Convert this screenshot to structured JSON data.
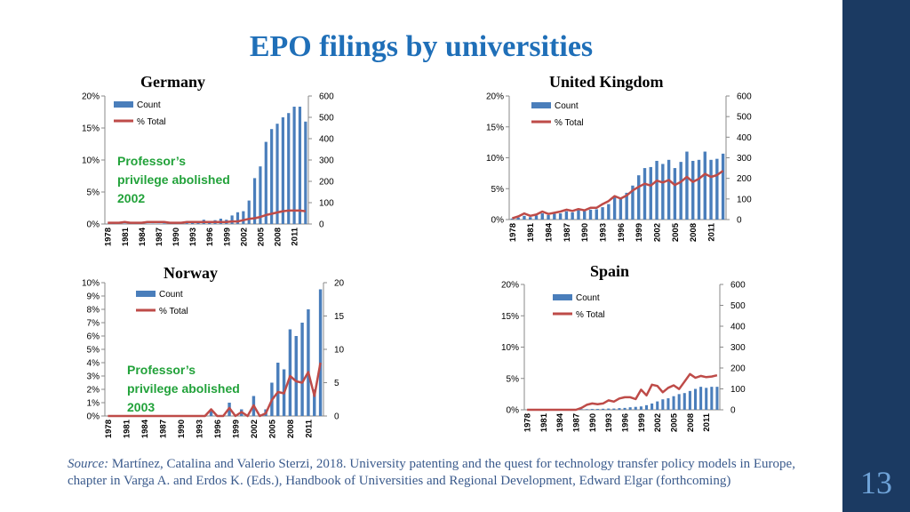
{
  "slide": {
    "title": "EPO filings by universities",
    "page_number": "13",
    "source_label": "Source:",
    "source_text": "Martínez, Catalina and Valerio Sterzi, 2018. University patenting and the quest for technology transfer policy models in Europe, chapter in Varga A. and Erdos K. (Eds.), Handbook of Universities and Regional Development, Edward Elgar (forthcoming)"
  },
  "colors": {
    "bar": "#4a7ebb",
    "line": "#be4b48",
    "annotation": "#22a23a",
    "title": "#1f6fb8",
    "sidebar": "#1b3a62"
  },
  "chart_data": [
    {
      "type": "bar",
      "title": "Germany",
      "years": [
        1978,
        1979,
        1980,
        1981,
        1982,
        1983,
        1984,
        1985,
        1986,
        1987,
        1988,
        1989,
        1990,
        1991,
        1992,
        1993,
        1994,
        1995,
        1996,
        1997,
        1998,
        1999,
        2000,
        2001,
        2002,
        2003,
        2004,
        2005,
        2006,
        2007,
        2008,
        2009,
        2010,
        2011,
        2012,
        2013
      ],
      "x_ticks": [
        "1978",
        "1981",
        "1984",
        "1987",
        "1990",
        "1993",
        "1996",
        "1999",
        "2002",
        "2005",
        "2008",
        "2011"
      ],
      "series": [
        {
          "name": "Count",
          "axis": "right",
          "values": [
            1,
            2,
            1,
            2,
            1,
            2,
            1,
            2,
            2,
            2,
            3,
            2,
            3,
            3,
            4,
            5,
            6,
            20,
            12,
            18,
            25,
            20,
            40,
            55,
            60,
            110,
            215,
            270,
            385,
            445,
            470,
            500,
            520,
            550,
            550,
            480
          ]
        },
        {
          "name": "% Total",
          "axis": "left",
          "values": [
            0.2,
            0.2,
            0.2,
            0.3,
            0.2,
            0.2,
            0.2,
            0.3,
            0.3,
            0.3,
            0.3,
            0.2,
            0.2,
            0.2,
            0.3,
            0.3,
            0.3,
            0.3,
            0.3,
            0.3,
            0.3,
            0.3,
            0.4,
            0.4,
            0.6,
            0.8,
            0.9,
            1.1,
            1.4,
            1.6,
            1.8,
            2.0,
            2.1,
            2.1,
            2.1,
            2.0
          ]
        }
      ],
      "y_left": {
        "ticks": [
          "0%",
          "5%",
          "10%",
          "15%",
          "20%"
        ],
        "min": 0,
        "max": 20
      },
      "y_right": {
        "ticks": [
          "0",
          "100",
          "200",
          "300",
          "400",
          "500",
          "600"
        ],
        "min": 0,
        "max": 600
      },
      "annotation": [
        "Professor’s",
        "privilege abolished",
        "2002"
      ]
    },
    {
      "type": "bar",
      "title": "United Kingdom",
      "years": [
        1978,
        1979,
        1980,
        1981,
        1982,
        1983,
        1984,
        1985,
        1986,
        1987,
        1988,
        1989,
        1990,
        1991,
        1992,
        1993,
        1994,
        1995,
        1996,
        1997,
        1998,
        1999,
        2000,
        2001,
        2002,
        2003,
        2004,
        2005,
        2006,
        2007,
        2008,
        2009,
        2010,
        2011,
        2012,
        2013
      ],
      "x_ticks": [
        "1978",
        "1981",
        "1984",
        "1987",
        "1990",
        "1993",
        "1996",
        "1999",
        "2002",
        "2005",
        "2008",
        "2011"
      ],
      "series": [
        {
          "name": "Count",
          "axis": "right",
          "values": [
            5,
            10,
            18,
            12,
            20,
            30,
            22,
            28,
            30,
            40,
            35,
            45,
            42,
            48,
            50,
            60,
            75,
            110,
            100,
            130,
            165,
            215,
            250,
            255,
            285,
            270,
            290,
            250,
            280,
            330,
            285,
            290,
            330,
            290,
            295,
            320
          ]
        },
        {
          "name": "% Total",
          "axis": "left",
          "values": [
            0.2,
            0.5,
            1.0,
            0.6,
            0.8,
            1.3,
            0.9,
            1.1,
            1.3,
            1.6,
            1.4,
            1.7,
            1.5,
            1.9,
            1.9,
            2.5,
            3.0,
            3.8,
            3.4,
            3.9,
            4.7,
            5.3,
            5.8,
            5.5,
            6.3,
            6.0,
            6.4,
            5.6,
            6.1,
            6.9,
            6.1,
            6.6,
            7.4,
            6.9,
            7.2,
            7.9
          ]
        }
      ],
      "y_left": {
        "ticks": [
          "0%",
          "5%",
          "10%",
          "15%",
          "20%"
        ],
        "min": 0,
        "max": 20
      },
      "y_right": {
        "ticks": [
          "0",
          "100",
          "200",
          "300",
          "400",
          "500",
          "600"
        ],
        "min": 0,
        "max": 600
      }
    },
    {
      "type": "bar",
      "title": "Norway",
      "years": [
        1978,
        1979,
        1980,
        1981,
        1982,
        1983,
        1984,
        1985,
        1986,
        1987,
        1988,
        1989,
        1990,
        1991,
        1992,
        1993,
        1994,
        1995,
        1996,
        1997,
        1998,
        1999,
        2000,
        2001,
        2002,
        2003,
        2004,
        2005,
        2006,
        2007,
        2008,
        2009,
        2010,
        2011,
        2012,
        2013
      ],
      "x_ticks": [
        "1978",
        "1981",
        "1984",
        "1987",
        "1990",
        "1993",
        "1996",
        "1999",
        "2002",
        "2005",
        "2008",
        "2011"
      ],
      "series": [
        {
          "name": "Count",
          "axis": "right",
          "values": [
            0,
            0,
            0,
            0,
            0,
            0,
            0,
            0,
            0,
            0,
            0,
            0,
            0,
            0,
            0,
            0,
            0,
            1,
            0,
            0,
            2,
            0,
            1,
            0,
            3,
            0,
            1,
            5,
            8,
            7,
            13,
            12,
            14,
            16,
            4,
            19
          ]
        },
        {
          "name": "% Total",
          "axis": "left",
          "values": [
            0,
            0,
            0,
            0,
            0,
            0,
            0,
            0,
            0,
            0,
            0,
            0,
            0,
            0,
            0,
            0,
            0,
            0.5,
            0,
            0,
            0.6,
            0,
            0.3,
            0,
            0.8,
            0,
            0.2,
            1.2,
            1.8,
            1.7,
            3.0,
            2.6,
            2.5,
            3.3,
            1.5,
            4.0
          ]
        }
      ],
      "y_left": {
        "ticks": [
          "0%",
          "1%",
          "2%",
          "3%",
          "4%",
          "5%",
          "6%",
          "7%",
          "8%",
          "9%",
          "10%"
        ],
        "min": 0,
        "max": 10
      },
      "y_right": {
        "ticks": [
          "0",
          "5",
          "10",
          "15",
          "20"
        ],
        "min": 0,
        "max": 20
      },
      "annotation": [
        "Professor’s",
        "privilege abolished",
        "2003"
      ]
    },
    {
      "type": "bar",
      "title": "Spain",
      "years": [
        1978,
        1979,
        1980,
        1981,
        1982,
        1983,
        1984,
        1985,
        1986,
        1987,
        1988,
        1989,
        1990,
        1991,
        1992,
        1993,
        1994,
        1995,
        1996,
        1997,
        1998,
        1999,
        2000,
        2001,
        2002,
        2003,
        2004,
        2005,
        2006,
        2007,
        2008,
        2009,
        2010,
        2011,
        2012,
        2013
      ],
      "x_ticks": [
        "1978",
        "1981",
        "1984",
        "1987",
        "1990",
        "1993",
        "1996",
        "1999",
        "2002",
        "2005",
        "2008",
        "2011"
      ],
      "series": [
        {
          "name": "Count",
          "axis": "right",
          "values": [
            0,
            0,
            0,
            0,
            0,
            1,
            0,
            1,
            1,
            2,
            3,
            3,
            4,
            4,
            5,
            6,
            6,
            8,
            9,
            12,
            14,
            16,
            22,
            30,
            40,
            50,
            55,
            65,
            75,
            80,
            90,
            100,
            110,
            105,
            110,
            110
          ]
        },
        {
          "name": "% Total",
          "axis": "left",
          "values": [
            0,
            0,
            0,
            0,
            0,
            0,
            0,
            0,
            0,
            0,
            0.3,
            0.8,
            1.0,
            0.9,
            1.0,
            1.5,
            1.3,
            1.8,
            2.0,
            2.0,
            1.7,
            3.2,
            2.3,
            4.0,
            3.8,
            2.8,
            3.5,
            3.9,
            3.3,
            4.5,
            5.7,
            5.1,
            5.4,
            5.2,
            5.3,
            5.5
          ]
        }
      ],
      "y_left": {
        "ticks": [
          "0%",
          "5%",
          "10%",
          "15%",
          "20%"
        ],
        "min": 0,
        "max": 20
      },
      "y_right": {
        "ticks": [
          "0",
          "100",
          "200",
          "300",
          "400",
          "500",
          "600"
        ],
        "min": 0,
        "max": 600
      }
    }
  ]
}
